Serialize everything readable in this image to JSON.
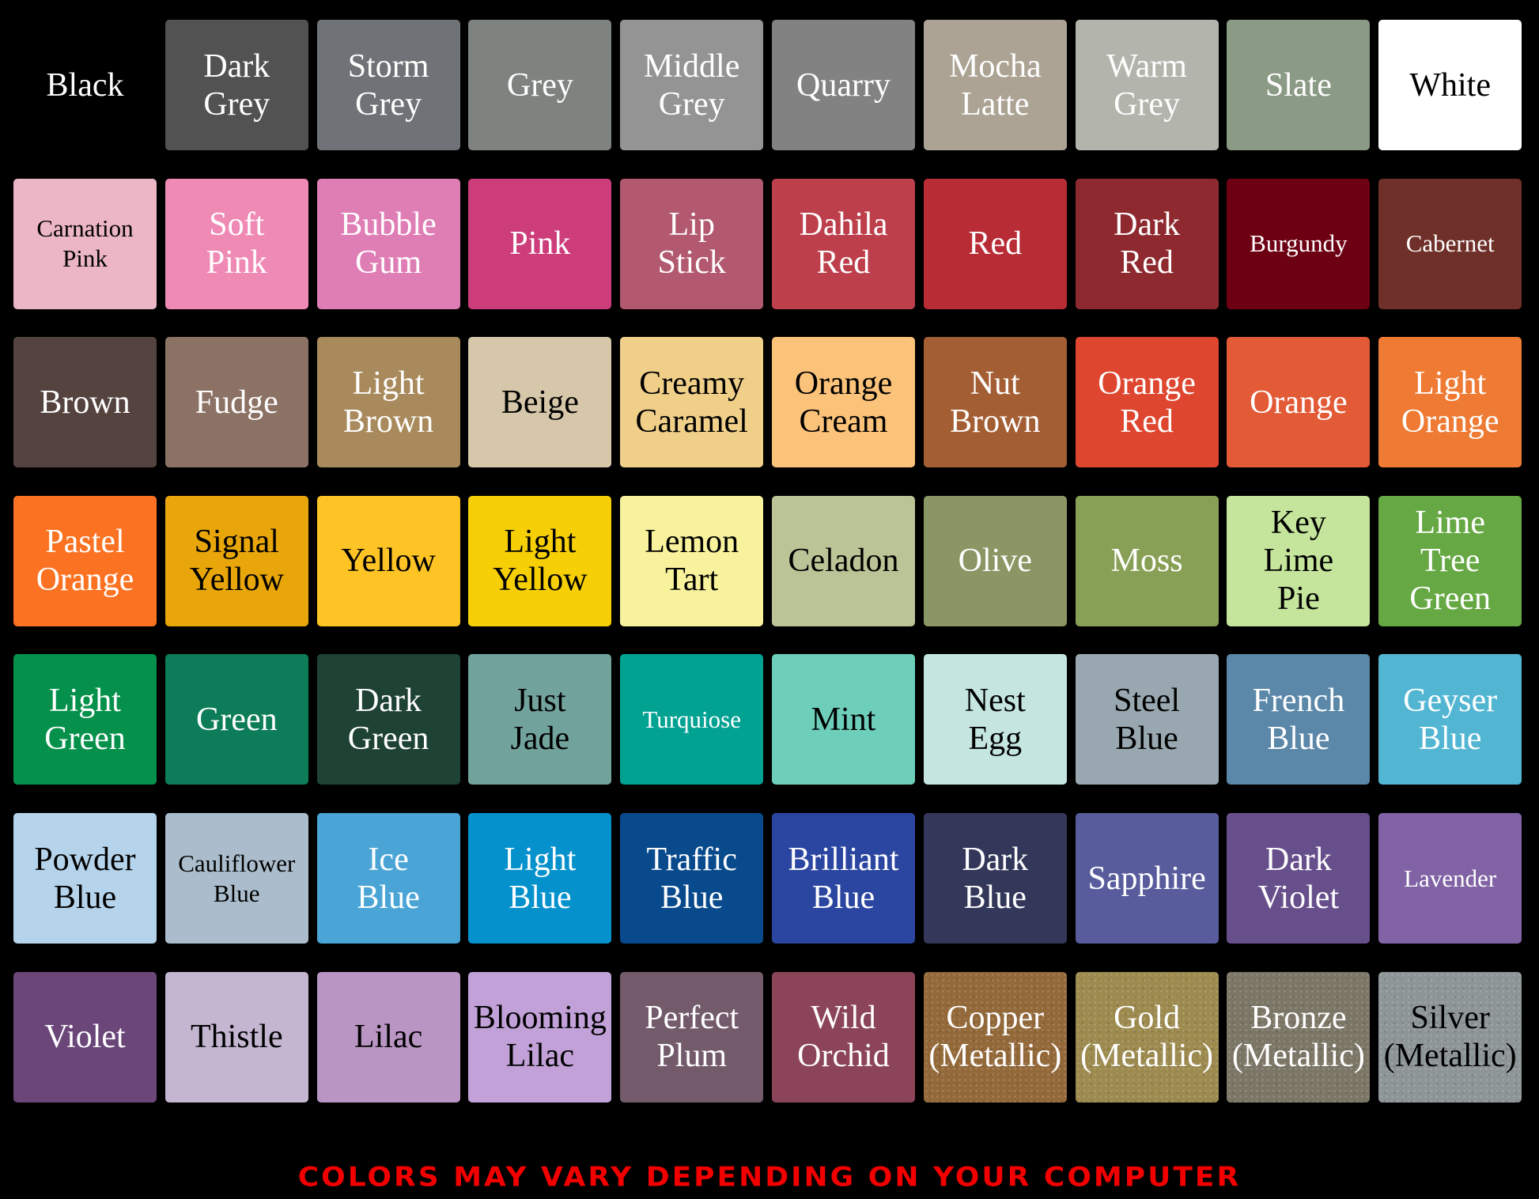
{
  "tiles": [
    {
      "label": "Black",
      "color": "#000000",
      "text": "#ffffff"
    },
    {
      "label": "Dark\nGrey",
      "color": "#525252",
      "text": "#ffffff"
    },
    {
      "label": "Storm\nGrey",
      "color": "#6f7276",
      "text": "#ffffff"
    },
    {
      "label": "Grey",
      "color": "#7e837f",
      "text": "#ffffff"
    },
    {
      "label": "Middle\nGrey",
      "color": "#949494",
      "text": "#ffffff"
    },
    {
      "label": "Quarry",
      "color": "#828282",
      "text": "#ffffff"
    },
    {
      "label": "Mocha\nLatte",
      "color": "#aca394",
      "text": "#ffffff"
    },
    {
      "label": "Warm\nGrey",
      "color": "#b3b5ad",
      "text": "#ffffff"
    },
    {
      "label": "Slate",
      "color": "#8a9a84",
      "text": "#ffffff"
    },
    {
      "label": "White",
      "color": "#ffffff",
      "text": "#000000"
    },
    {
      "label": "Carnation\nPink",
      "color": "#ecb6c4",
      "text": "#000000",
      "small": true
    },
    {
      "label": "Soft\nPink",
      "color": "#ef8ab5",
      "text": "#ffffff"
    },
    {
      "label": "Bubble\nGum",
      "color": "#df7db5",
      "text": "#ffffff"
    },
    {
      "label": "Pink",
      "color": "#cc3d7a",
      "text": "#ffffff"
    },
    {
      "label": "Lip\nStick",
      "color": "#b2586f",
      "text": "#ffffff"
    },
    {
      "label": "Dahila\nRed",
      "color": "#bc3f4b",
      "text": "#ffffff"
    },
    {
      "label": "Red",
      "color": "#b82c35",
      "text": "#ffffff"
    },
    {
      "label": "Dark\nRed",
      "color": "#8e2a2f",
      "text": "#ffffff"
    },
    {
      "label": "Burgundy",
      "color": "#6e0013",
      "text": "#ffffff",
      "small": true
    },
    {
      "label": "Cabernet",
      "color": "#6f3029",
      "text": "#ffffff",
      "small": true
    },
    {
      "label": "Brown",
      "color": "#54433f",
      "text": "#ffffff"
    },
    {
      "label": "Fudge",
      "color": "#8c7264",
      "text": "#ffffff"
    },
    {
      "label": "Light\nBrown",
      "color": "#a88a5c",
      "text": "#ffffff"
    },
    {
      "label": "Beige",
      "color": "#d6c7aa",
      "text": "#000000"
    },
    {
      "label": "Creamy\nCaramel",
      "color": "#f0cf88",
      "text": "#000000"
    },
    {
      "label": "Orange\nCream",
      "color": "#fbc27a",
      "text": "#000000"
    },
    {
      "label": "Nut\nBrown",
      "color": "#a45e34",
      "text": "#ffffff"
    },
    {
      "label": "Orange\nRed",
      "color": "#de4630",
      "text": "#ffffff"
    },
    {
      "label": "Orange",
      "color": "#e25a36",
      "text": "#ffffff"
    },
    {
      "label": "Light\nOrange",
      "color": "#ee7a33",
      "text": "#ffffff"
    },
    {
      "label": "Pastel\nOrange",
      "color": "#fb7322",
      "text": "#ffffff"
    },
    {
      "label": "Signal\nYellow",
      "color": "#e8a60a",
      "text": "#000000"
    },
    {
      "label": "Yellow",
      "color": "#fec325",
      "text": "#000000"
    },
    {
      "label": "Light\nYellow",
      "color": "#f6cf07",
      "text": "#000000"
    },
    {
      "label": "Lemon\nTart",
      "color": "#f8f29c",
      "text": "#000000"
    },
    {
      "label": "Celadon",
      "color": "#bbc496",
      "text": "#000000"
    },
    {
      "label": "Olive",
      "color": "#8b9665",
      "text": "#ffffff"
    },
    {
      "label": "Moss",
      "color": "#88a055",
      "text": "#ffffff"
    },
    {
      "label": "Key\nLime\nPie",
      "color": "#c5e59c",
      "text": "#000000"
    },
    {
      "label": "Lime\nTree\nGreen",
      "color": "#66a844",
      "text": "#ffffff"
    },
    {
      "label": "Light\nGreen",
      "color": "#05914b",
      "text": "#ffffff"
    },
    {
      "label": "Green",
      "color": "#0c7d58",
      "text": "#ffffff"
    },
    {
      "label": "Dark\nGreen",
      "color": "#1e4234",
      "text": "#ffffff"
    },
    {
      "label": "Just\nJade",
      "color": "#72a29c",
      "text": "#000000"
    },
    {
      "label": "Turquiose",
      "color": "#02a293",
      "text": "#ffffff",
      "small": true
    },
    {
      "label": "Mint",
      "color": "#6dcfba",
      "text": "#000000"
    },
    {
      "label": "Nest\nEgg",
      "color": "#c5e6e0",
      "text": "#000000"
    },
    {
      "label": "Steel\nBlue",
      "color": "#99a8b0",
      "text": "#000000"
    },
    {
      "label": "French\nBlue",
      "color": "#5b87a8",
      "text": "#ffffff"
    },
    {
      "label": "Geyser\nBlue",
      "color": "#52b6d3",
      "text": "#ffffff"
    },
    {
      "label": "Powder\nBlue",
      "color": "#b5d3ea",
      "text": "#000000"
    },
    {
      "label": "Cauliflower\nBlue",
      "color": "#abbdcc",
      "text": "#000000",
      "small": true
    },
    {
      "label": "Ice\nBlue",
      "color": "#4aa5d6",
      "text": "#ffffff"
    },
    {
      "label": "Light\nBlue",
      "color": "#0591cb",
      "text": "#ffffff"
    },
    {
      "label": "Traffic\nBlue",
      "color": "#084a8c",
      "text": "#ffffff"
    },
    {
      "label": "Brilliant\nBlue",
      "color": "#2b46a0",
      "text": "#ffffff"
    },
    {
      "label": "Dark\nBlue",
      "color": "#33375a",
      "text": "#ffffff"
    },
    {
      "label": "Sapphire",
      "color": "#585c9c",
      "text": "#ffffff"
    },
    {
      "label": "Dark\nViolet",
      "color": "#674f8c",
      "text": "#ffffff"
    },
    {
      "label": "Lavender",
      "color": "#8163a5",
      "text": "#ffffff",
      "small": true
    },
    {
      "label": "Violet",
      "color": "#6a4679",
      "text": "#ffffff"
    },
    {
      "label": "Thistle",
      "color": "#c4b5d1",
      "text": "#000000"
    },
    {
      "label": "Lilac",
      "color": "#b995c3",
      "text": "#000000"
    },
    {
      "label": "Blooming\nLilac",
      "color": "#c1a1d7",
      "text": "#000000"
    },
    {
      "label": "Perfect\nPlum",
      "color": "#735b6c",
      "text": "#ffffff"
    },
    {
      "label": "Wild\nOrchid",
      "color": "#8b4458",
      "text": "#ffffff"
    },
    {
      "label": "Copper\n(Metallic)",
      "color": "#93693a",
      "text": "#ffffff",
      "metallic": true
    },
    {
      "label": "Gold\n(Metallic)",
      "color": "#9c8a4f",
      "text": "#ffffff",
      "metallic": true
    },
    {
      "label": "Bronze\n(Metallic)",
      "color": "#7c7667",
      "text": "#ffffff",
      "metallic": true
    },
    {
      "label": "Silver\n(Metallic)",
      "color": "#8e9596",
      "text": "#000000",
      "metallic": true
    }
  ],
  "footer": "COLORS MAY VARY DEPENDING ON YOUR COMPUTER"
}
